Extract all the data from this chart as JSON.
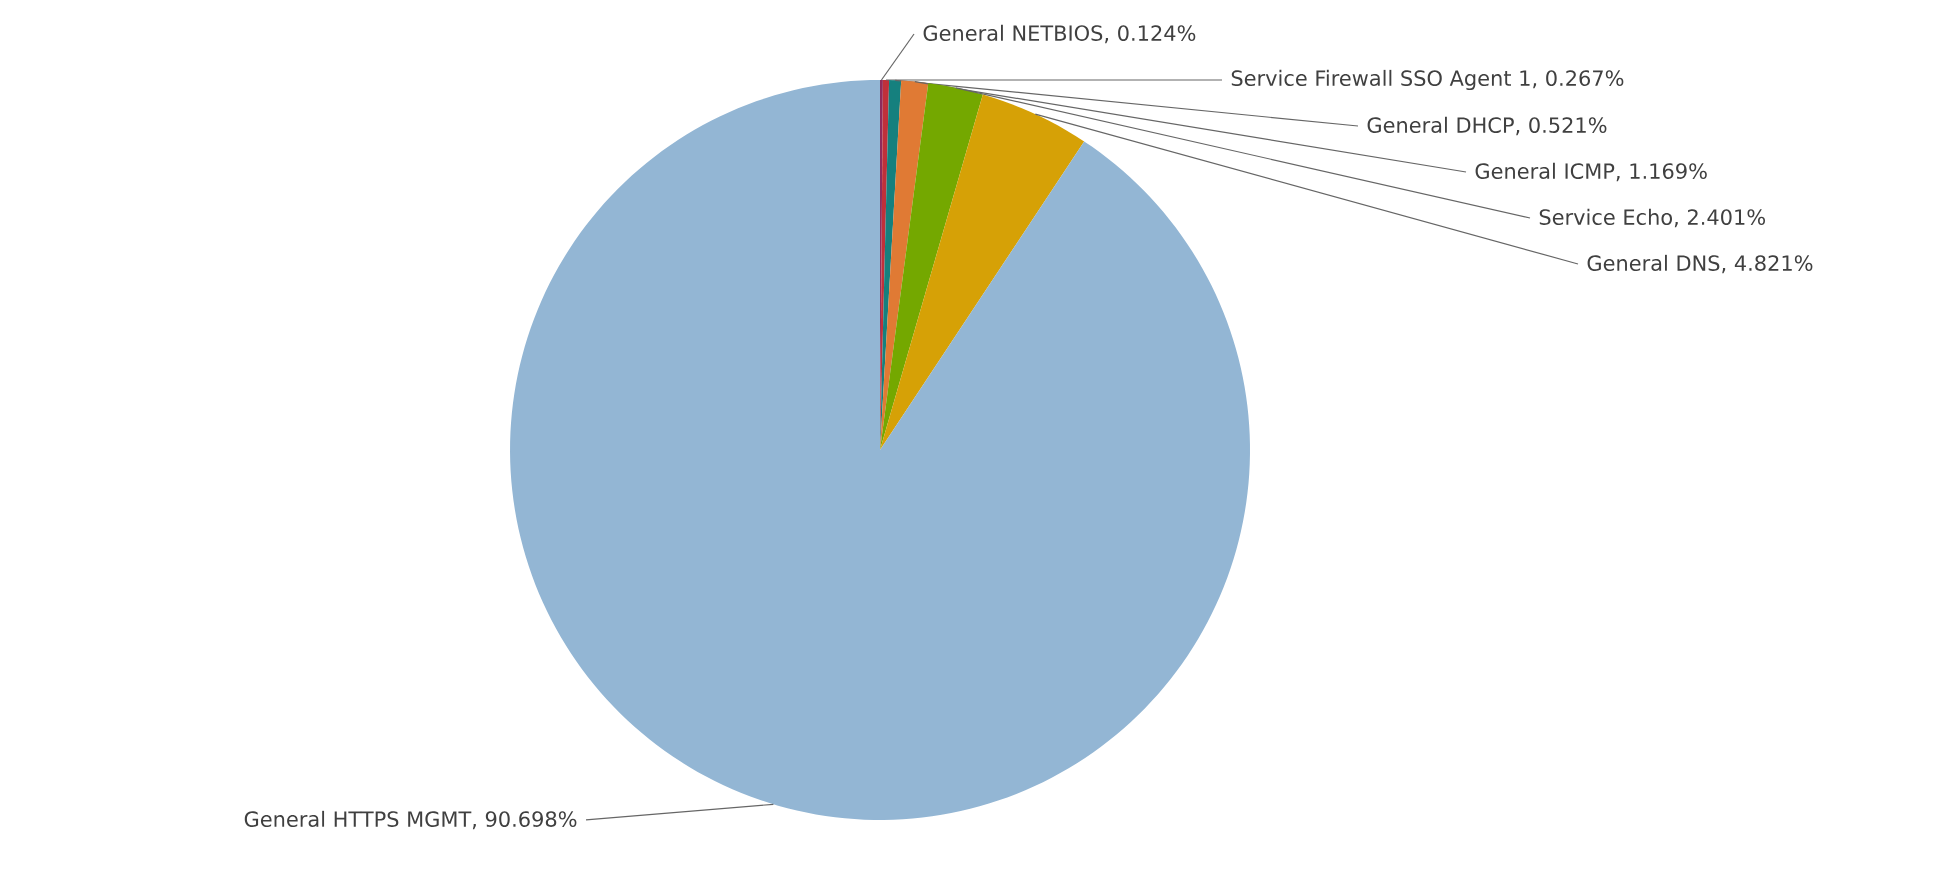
{
  "chart_data": {
    "type": "pie",
    "categories": [
      "General NETBIOS",
      "Service Firewall SSO Agent 1",
      "General DHCP",
      "General ICMP",
      "Service Echo",
      "General DNS",
      "General HTTPS MGMT"
    ],
    "values": [
      0.124,
      0.267,
      0.521,
      1.169,
      2.401,
      4.821,
      90.698
    ],
    "value_labels": [
      ", 0.124%",
      ", 0.267%",
      ", 0.521%",
      ", 1.169%",
      ", 2.401%",
      ", 4.821%",
      ", 90.698%"
    ],
    "colors": [
      "#8e2b5c",
      "#c0303a",
      "#15807e",
      "#e07a34",
      "#74a800",
      "#d6a106",
      "#93b6d4"
    ]
  }
}
